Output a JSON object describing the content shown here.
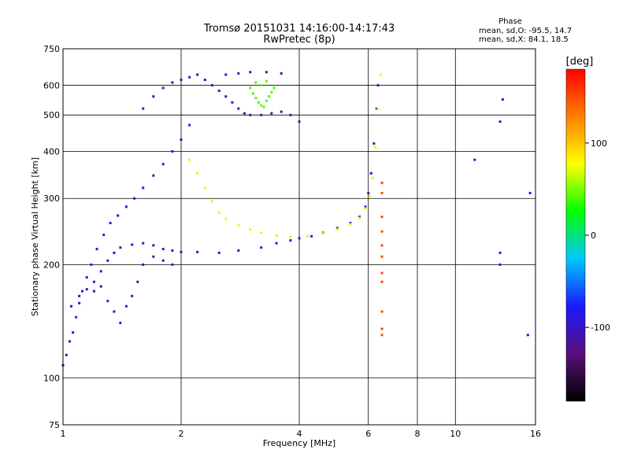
{
  "chart_data": {
    "type": "scatter",
    "title": "Tromsø 20151031 14:16:00-14:17:43",
    "subtitle": "RwPretec (8p)",
    "xlabel": "Frequency [MHz]",
    "ylabel": "Stationary phase Virtual Height [km]",
    "x_scale": "log",
    "y_scale": "log",
    "xlim": [
      1,
      16
    ],
    "ylim": [
      75,
      750
    ],
    "x_ticks": [
      1,
      2,
      4,
      6,
      8,
      10,
      16
    ],
    "x_tick_labels": [
      "1",
      "2",
      "4",
      "6",
      "8",
      "10",
      "16"
    ],
    "y_ticks": [
      75,
      100,
      200,
      300,
      400,
      500,
      600,
      750
    ],
    "y_tick_labels": [
      "75",
      "100",
      "200",
      "300",
      "400",
      "500",
      "600",
      "750"
    ],
    "grid": true,
    "stats": {
      "header": "Phase",
      "line_o": "mean, sd,O: -95.5, 14.7",
      "line_x": "mean, sd,X:  84.1, 18.5"
    },
    "colorbar": {
      "label": "[deg]",
      "range": [
        -180,
        180
      ],
      "ticks": [
        100,
        0,
        -100
      ],
      "tick_labels": [
        "100",
        "0",
        "-100"
      ],
      "stops": [
        "#000000",
        "#5a0f7a",
        "#1a1aff",
        "#00c8ff",
        "#00ff00",
        "#ffff00",
        "#ff8000",
        "#ff0000"
      ]
    },
    "traces": [
      {
        "name": "",
        "phase": -100,
        "points": [
          [
            1.0,
            108
          ],
          [
            1.02,
            115
          ],
          [
            1.04,
            125
          ],
          [
            1.06,
            132
          ],
          [
            1.08,
            145
          ],
          [
            1.1,
            158
          ],
          [
            1.12,
            170
          ],
          [
            1.15,
            185
          ],
          [
            1.18,
            200
          ],
          [
            1.22,
            220
          ],
          [
            1.27,
            240
          ],
          [
            1.32,
            258
          ],
          [
            1.38,
            270
          ],
          [
            1.45,
            285
          ],
          [
            1.52,
            300
          ],
          [
            1.6,
            320
          ],
          [
            1.7,
            345
          ],
          [
            1.8,
            370
          ],
          [
            1.9,
            400
          ],
          [
            2.0,
            430
          ],
          [
            2.1,
            470
          ]
        ]
      },
      {
        "name": "",
        "phase": -95,
        "points": [
          [
            1.05,
            155
          ],
          [
            1.1,
            165
          ],
          [
            1.15,
            172
          ],
          [
            1.2,
            180
          ],
          [
            1.25,
            192
          ],
          [
            1.3,
            205
          ],
          [
            1.35,
            215
          ],
          [
            1.4,
            222
          ],
          [
            1.5,
            226
          ],
          [
            1.6,
            228
          ],
          [
            1.7,
            225
          ],
          [
            1.8,
            220
          ],
          [
            1.9,
            218
          ],
          [
            2.0,
            216
          ],
          [
            2.2,
            216
          ],
          [
            2.5,
            215
          ],
          [
            2.8,
            218
          ],
          [
            3.2,
            222
          ],
          [
            3.5,
            228
          ],
          [
            3.8,
            232
          ],
          [
            4.0,
            235
          ],
          [
            4.3,
            238
          ],
          [
            4.6,
            243
          ],
          [
            5.0,
            250
          ],
          [
            5.4,
            258
          ],
          [
            5.7,
            268
          ],
          [
            5.9,
            285
          ],
          [
            6.0,
            310
          ],
          [
            6.1,
            350
          ],
          [
            6.2,
            420
          ],
          [
            6.3,
            520
          ],
          [
            6.35,
            600
          ]
        ]
      },
      {
        "name": "",
        "phase": 85,
        "points": [
          [
            2.1,
            380
          ],
          [
            2.2,
            350
          ],
          [
            2.3,
            320
          ],
          [
            2.4,
            295
          ],
          [
            2.5,
            275
          ],
          [
            2.6,
            265
          ],
          [
            2.8,
            255
          ],
          [
            3.0,
            248
          ],
          [
            3.2,
            243
          ],
          [
            3.5,
            239
          ],
          [
            3.8,
            237
          ],
          [
            4.2,
            238
          ],
          [
            4.6,
            242
          ],
          [
            5.0,
            248
          ],
          [
            5.4,
            256
          ],
          [
            5.7,
            266
          ],
          [
            5.9,
            282
          ],
          [
            6.05,
            305
          ],
          [
            6.15,
            340
          ],
          [
            6.25,
            410
          ],
          [
            6.35,
            520
          ],
          [
            6.45,
            640
          ]
        ]
      },
      {
        "name": "",
        "phase": 40,
        "points": [
          [
            3.0,
            590
          ],
          [
            3.05,
            570
          ],
          [
            3.1,
            555
          ],
          [
            3.15,
            540
          ],
          [
            3.2,
            530
          ],
          [
            3.25,
            525
          ],
          [
            3.3,
            545
          ],
          [
            3.35,
            560
          ],
          [
            3.4,
            575
          ],
          [
            3.45,
            590
          ],
          [
            3.2,
            600
          ],
          [
            3.1,
            610
          ],
          [
            3.3,
            615
          ]
        ]
      },
      {
        "name": "",
        "phase": -110,
        "points": [
          [
            1.6,
            520
          ],
          [
            1.7,
            560
          ],
          [
            1.8,
            590
          ],
          [
            1.9,
            610
          ],
          [
            2.0,
            620
          ],
          [
            2.1,
            630
          ],
          [
            2.2,
            640
          ],
          [
            2.3,
            620
          ],
          [
            2.4,
            600
          ],
          [
            2.5,
            580
          ],
          [
            2.6,
            560
          ],
          [
            2.7,
            540
          ],
          [
            2.8,
            520
          ],
          [
            2.9,
            505
          ],
          [
            3.0,
            500
          ],
          [
            3.2,
            500
          ],
          [
            3.4,
            505
          ],
          [
            3.6,
            510
          ],
          [
            3.8,
            500
          ],
          [
            4.0,
            480
          ],
          [
            2.6,
            640
          ],
          [
            2.8,
            645
          ],
          [
            3.0,
            650
          ],
          [
            3.3,
            650
          ],
          [
            3.6,
            645
          ]
        ]
      },
      {
        "name": "",
        "phase": -105,
        "points": [
          [
            1.2,
            170
          ],
          [
            1.25,
            175
          ],
          [
            1.3,
            160
          ],
          [
            1.35,
            150
          ],
          [
            1.4,
            140
          ],
          [
            1.45,
            155
          ],
          [
            1.5,
            165
          ],
          [
            1.55,
            180
          ],
          [
            1.6,
            200
          ],
          [
            1.7,
            210
          ],
          [
            1.8,
            205
          ],
          [
            1.9,
            200
          ]
        ]
      },
      {
        "name": "",
        "phase": 150,
        "points": [
          [
            6.5,
            330
          ],
          [
            6.5,
            310
          ],
          [
            6.5,
            268
          ],
          [
            6.5,
            245
          ],
          [
            6.5,
            225
          ],
          [
            6.5,
            210
          ],
          [
            6.5,
            190
          ],
          [
            6.5,
            180
          ],
          [
            6.5,
            150
          ],
          [
            6.5,
            135
          ],
          [
            6.5,
            130
          ]
        ]
      },
      {
        "name": "",
        "phase": -90,
        "points": [
          [
            11.2,
            380
          ],
          [
            13.0,
            215
          ],
          [
            13.0,
            200
          ],
          [
            15.3,
            130
          ],
          [
            15.5,
            310
          ],
          [
            13.2,
            550
          ],
          [
            13.0,
            480
          ]
        ]
      }
    ]
  }
}
